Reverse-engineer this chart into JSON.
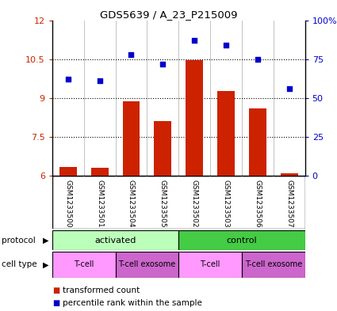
{
  "title": "GDS5639 / A_23_P215009",
  "samples": [
    "GSM1233500",
    "GSM1233501",
    "GSM1233504",
    "GSM1233505",
    "GSM1233502",
    "GSM1233503",
    "GSM1233506",
    "GSM1233507"
  ],
  "transformed_count": [
    6.35,
    6.32,
    8.88,
    8.12,
    10.47,
    9.27,
    8.6,
    6.08
  ],
  "percentile_rank": [
    62,
    61,
    78,
    72,
    87,
    84,
    75,
    56
  ],
  "ylim_left": [
    6,
    12
  ],
  "ylim_right": [
    0,
    100
  ],
  "yticks_left": [
    6,
    7.5,
    9,
    10.5,
    12
  ],
  "yticks_right": [
    0,
    25,
    50,
    75,
    100
  ],
  "ytick_labels_right": [
    "0",
    "25",
    "50",
    "75",
    "100%"
  ],
  "bar_color": "#cc2200",
  "dot_color": "#0000cc",
  "protocol_color_activated": "#bbffbb",
  "protocol_color_control": "#44cc44",
  "celltype_color_tcell": "#ff99ff",
  "celltype_color_exosome": "#cc66cc",
  "sample_bg_color": "#cccccc",
  "plot_bg": "#ffffff",
  "bar_baseline": 6,
  "bar_width": 0.55
}
